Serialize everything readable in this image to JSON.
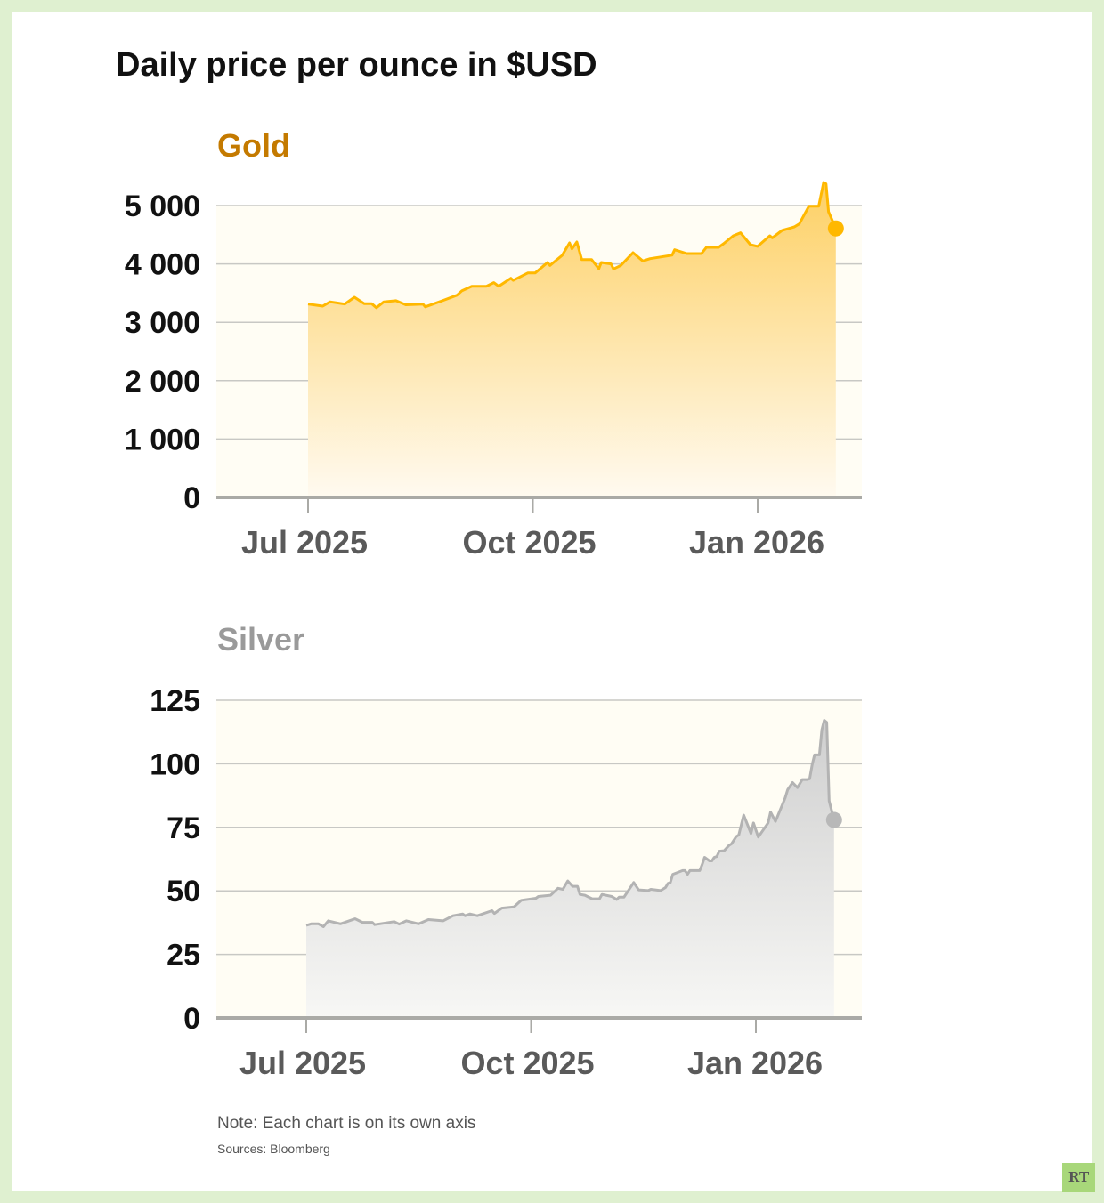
{
  "title": "Daily price per ounce in $USD",
  "note": "Note: Each chart is on its own axis",
  "sources": "Sources: Bloomberg",
  "logo_text": "RT",
  "colors": {
    "gold_line": "#ffb800",
    "gold_title": "#c47a00",
    "silver_line": "#b3b3b3",
    "silver_title": "#9a9a9a",
    "frame": "#dff0d0"
  },
  "chart_data": [
    {
      "type": "area",
      "title": "Gold",
      "ylim": [
        0,
        5000
      ],
      "yticks": [
        0,
        1000,
        2000,
        3000,
        4000,
        5000
      ],
      "ytick_labels": [
        "0",
        "1 000",
        "2 000",
        "3 000",
        "4 000",
        "5 000"
      ],
      "xticks": [
        "2025-07-01",
        "2025-10-01",
        "2026-01-01"
      ],
      "xtick_labels": [
        "Jul 2025",
        "Oct 2025",
        "Jan 2026"
      ],
      "grid": true,
      "points": [
        [
          "2025-07-01",
          3313
        ],
        [
          "2025-07-07",
          3277
        ],
        [
          "2025-07-10",
          3350
        ],
        [
          "2025-07-16",
          3313
        ],
        [
          "2025-07-20",
          3430
        ],
        [
          "2025-07-24",
          3320
        ],
        [
          "2025-07-27",
          3320
        ],
        [
          "2025-07-29",
          3250
        ],
        [
          "2025-08-01",
          3350
        ],
        [
          "2025-08-06",
          3370
        ],
        [
          "2025-08-10",
          3300
        ],
        [
          "2025-08-17",
          3313
        ],
        [
          "2025-08-18",
          3265
        ],
        [
          "2025-08-25",
          3370
        ],
        [
          "2025-08-31",
          3465
        ],
        [
          "2025-09-02",
          3541
        ],
        [
          "2025-09-06",
          3618
        ],
        [
          "2025-09-12",
          3618
        ],
        [
          "2025-09-15",
          3680
        ],
        [
          "2025-09-17",
          3618
        ],
        [
          "2025-09-22",
          3755
        ],
        [
          "2025-09-23",
          3718
        ],
        [
          "2025-09-29",
          3846
        ],
        [
          "2025-10-02",
          3846
        ],
        [
          "2025-10-07",
          4024
        ],
        [
          "2025-10-08",
          3974
        ],
        [
          "2025-10-13",
          4146
        ],
        [
          "2025-10-16",
          4360
        ],
        [
          "2025-10-17",
          4258
        ],
        [
          "2025-10-19",
          4375
        ],
        [
          "2025-10-21",
          4075
        ],
        [
          "2025-10-25",
          4075
        ],
        [
          "2025-10-28",
          3918
        ],
        [
          "2025-10-29",
          4024
        ],
        [
          "2025-11-02",
          4000
        ],
        [
          "2025-11-03",
          3913
        ],
        [
          "2025-11-06",
          3974
        ],
        [
          "2025-11-11",
          4192
        ],
        [
          "2025-11-15",
          4050
        ],
        [
          "2025-11-18",
          4090
        ],
        [
          "2025-11-27",
          4150
        ],
        [
          "2025-11-28",
          4243
        ],
        [
          "2025-12-03",
          4177
        ],
        [
          "2025-12-09",
          4177
        ],
        [
          "2025-12-11",
          4283
        ],
        [
          "2025-12-16",
          4283
        ],
        [
          "2025-12-18",
          4345
        ],
        [
          "2025-12-22",
          4482
        ],
        [
          "2025-12-25",
          4532
        ],
        [
          "2025-12-29",
          4330
        ],
        [
          "2026-01-01",
          4300
        ],
        [
          "2026-01-06",
          4482
        ],
        [
          "2026-01-07",
          4447
        ],
        [
          "2026-01-11",
          4573
        ],
        [
          "2026-01-16",
          4634
        ],
        [
          "2026-01-18",
          4685
        ],
        [
          "2026-01-22",
          4990
        ],
        [
          "2026-01-26",
          4990
        ],
        [
          "2026-01-28",
          5396
        ],
        [
          "2026-01-29",
          5370
        ],
        [
          "2026-01-30",
          4893
        ],
        [
          "2026-02-02",
          4608
        ]
      ]
    },
    {
      "type": "area",
      "title": "Silver",
      "ylim": [
        0,
        125
      ],
      "yticks": [
        0,
        25,
        50,
        75,
        100,
        125
      ],
      "ytick_labels": [
        "0",
        "25",
        "50",
        "75",
        "100",
        "125"
      ],
      "xticks": [
        "2025-07-01",
        "2025-10-01",
        "2026-01-01"
      ],
      "xtick_labels": [
        "Jul 2025",
        "Oct 2025",
        "Jan 2026"
      ],
      "grid": true,
      "points": [
        [
          "2025-07-01",
          36.4
        ],
        [
          "2025-07-03",
          37.0
        ],
        [
          "2025-07-06",
          37.0
        ],
        [
          "2025-07-08",
          35.9
        ],
        [
          "2025-07-10",
          38.2
        ],
        [
          "2025-07-15",
          37.0
        ],
        [
          "2025-07-21",
          39.0
        ],
        [
          "2025-07-24",
          37.6
        ],
        [
          "2025-07-28",
          37.6
        ],
        [
          "2025-07-29",
          36.7
        ],
        [
          "2025-08-06",
          37.9
        ],
        [
          "2025-08-08",
          36.9
        ],
        [
          "2025-08-11",
          38.2
        ],
        [
          "2025-08-16",
          37.0
        ],
        [
          "2025-08-20",
          38.7
        ],
        [
          "2025-08-26",
          38.2
        ],
        [
          "2025-08-30",
          40.2
        ],
        [
          "2025-09-03",
          40.9
        ],
        [
          "2025-09-04",
          40.2
        ],
        [
          "2025-09-06",
          40.9
        ],
        [
          "2025-09-09",
          40.2
        ],
        [
          "2025-09-15",
          42.2
        ],
        [
          "2025-09-16",
          41.1
        ],
        [
          "2025-09-19",
          43.2
        ],
        [
          "2025-09-24",
          43.7
        ],
        [
          "2025-09-27",
          46.3
        ],
        [
          "2025-10-03",
          47.1
        ],
        [
          "2025-10-04",
          47.8
        ],
        [
          "2025-10-09",
          48.3
        ],
        [
          "2025-10-12",
          51.0
        ],
        [
          "2025-10-14",
          50.6
        ],
        [
          "2025-10-16",
          53.9
        ],
        [
          "2025-10-18",
          51.8
        ],
        [
          "2025-10-20",
          51.8
        ],
        [
          "2025-10-21",
          48.6
        ],
        [
          "2025-10-23",
          48.3
        ],
        [
          "2025-10-26",
          46.9
        ],
        [
          "2025-10-29",
          46.9
        ],
        [
          "2025-10-30",
          48.6
        ],
        [
          "2025-11-03",
          47.8
        ],
        [
          "2025-11-05",
          46.6
        ],
        [
          "2025-11-06",
          47.5
        ],
        [
          "2025-11-08",
          47.5
        ],
        [
          "2025-11-12",
          53.3
        ],
        [
          "2025-11-14",
          50.4
        ],
        [
          "2025-11-18",
          50.1
        ],
        [
          "2025-11-19",
          50.6
        ],
        [
          "2025-11-23",
          50.1
        ],
        [
          "2025-11-25",
          51.3
        ],
        [
          "2025-11-26",
          52.9
        ],
        [
          "2025-11-27",
          53.3
        ],
        [
          "2025-11-28",
          56.5
        ],
        [
          "2025-12-02",
          58.0
        ],
        [
          "2025-12-03",
          58.0
        ],
        [
          "2025-12-04",
          56.5
        ],
        [
          "2025-12-05",
          58.0
        ],
        [
          "2025-12-09",
          58.0
        ],
        [
          "2025-12-10",
          60.3
        ],
        [
          "2025-12-11",
          63.2
        ],
        [
          "2025-12-13",
          61.8
        ],
        [
          "2025-12-14",
          61.8
        ],
        [
          "2025-12-15",
          63.2
        ],
        [
          "2025-12-16",
          63.5
        ],
        [
          "2025-12-17",
          65.6
        ],
        [
          "2025-12-19",
          65.8
        ],
        [
          "2025-12-21",
          67.9
        ],
        [
          "2025-12-22",
          68.5
        ],
        [
          "2025-12-24",
          71.4
        ],
        [
          "2025-12-25",
          72.0
        ],
        [
          "2025-12-27",
          79.8
        ],
        [
          "2025-12-30",
          72.6
        ],
        [
          "2025-12-31",
          76.7
        ],
        [
          "2026-01-02",
          71.2
        ],
        [
          "2026-01-06",
          76.7
        ],
        [
          "2026-01-07",
          81.0
        ],
        [
          "2026-01-09",
          77.3
        ],
        [
          "2026-01-13",
          86.6
        ],
        [
          "2026-01-14",
          89.8
        ],
        [
          "2026-01-16",
          92.6
        ],
        [
          "2026-01-18",
          90.6
        ],
        [
          "2026-01-20",
          93.8
        ],
        [
          "2026-01-22",
          93.8
        ],
        [
          "2026-01-23",
          94.1
        ],
        [
          "2026-01-24",
          99.4
        ],
        [
          "2026-01-25",
          103.5
        ],
        [
          "2026-01-27",
          103.5
        ],
        [
          "2026-01-28",
          113.4
        ],
        [
          "2026-01-29",
          117.1
        ],
        [
          "2026-01-30",
          116.3
        ],
        [
          "2026-01-31",
          85.4
        ],
        [
          "2026-02-02",
          77.9
        ]
      ]
    }
  ]
}
